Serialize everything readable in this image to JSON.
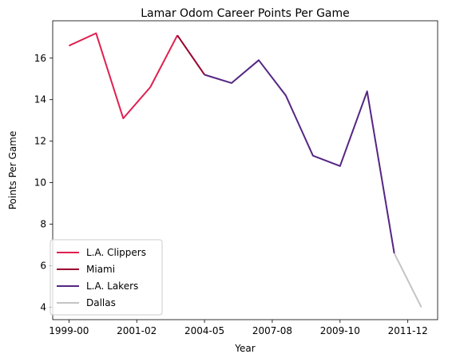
{
  "chart_data": {
    "type": "line",
    "title": "Lamar Odom Career Points Per Game",
    "xlabel": "Year",
    "ylabel": "Points Per Game",
    "xlim": [
      -0.6,
      13.6
    ],
    "ylim": [
      3.4,
      17.8
    ],
    "x_ticks": [
      {
        "pos": 0,
        "label": "1999-00"
      },
      {
        "pos": 2.5,
        "label": "2001-02"
      },
      {
        "pos": 5,
        "label": "2004-05"
      },
      {
        "pos": 7.5,
        "label": "2007-08"
      },
      {
        "pos": 10,
        "label": "2009-10"
      },
      {
        "pos": 12.5,
        "label": "2011-12"
      }
    ],
    "y_ticks": [
      4,
      6,
      8,
      10,
      12,
      14,
      16
    ],
    "legend_position": "lower-left",
    "grid": false,
    "series": [
      {
        "name": "L.A. Clippers",
        "color": "#e0204f",
        "x": [
          0,
          1,
          2,
          3
        ],
        "y": [
          16.6,
          17.2,
          13.1,
          14.6
        ]
      },
      {
        "name": "L.A. Clippers",
        "color": "#e0204f",
        "x": [
          3,
          4
        ],
        "y": [
          14.6,
          17.1
        ]
      },
      {
        "name": "Miami",
        "color": "#98002e",
        "x": [
          4,
          5
        ],
        "y": [
          17.1,
          15.2
        ]
      },
      {
        "name": "L.A. Lakers",
        "color": "#552583",
        "x": [
          5,
          6,
          7,
          8,
          9,
          10,
          11,
          12
        ],
        "y": [
          15.2,
          14.8,
          15.9,
          14.2,
          11.3,
          10.8,
          14.4,
          6.6
        ]
      },
      {
        "name": "Dallas",
        "color": "#c4c4c4",
        "x": [
          12,
          13
        ],
        "y": [
          6.6,
          4.0
        ]
      }
    ],
    "legend": [
      {
        "name": "L.A. Clippers",
        "color": "#e0204f"
      },
      {
        "name": "Miami",
        "color": "#98002e"
      },
      {
        "name": "L.A. Lakers",
        "color": "#552583"
      },
      {
        "name": "Dallas",
        "color": "#c4c4c4"
      }
    ]
  }
}
